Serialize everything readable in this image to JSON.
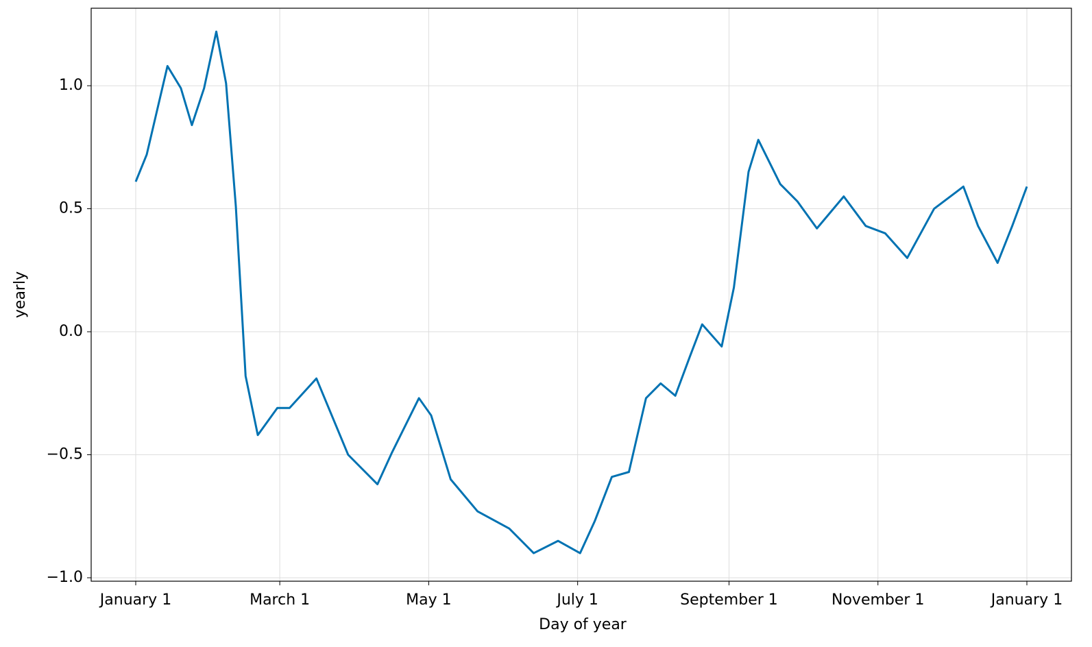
{
  "chart_data": {
    "type": "line",
    "x_label": "Day of year",
    "y_label": "yearly",
    "x": [
      0,
      4.5,
      13,
      18.5,
      23,
      28,
      33,
      37,
      41,
      45,
      50,
      58,
      63,
      74,
      87,
      99,
      105,
      116,
      121,
      129,
      140,
      153,
      163,
      173,
      182,
      188,
      195,
      202,
      209,
      215,
      221,
      227,
      232,
      240,
      245,
      251,
      255,
      264,
      271,
      279,
      290,
      299,
      307,
      316,
      327,
      339,
      345,
      353,
      359,
      365
    ],
    "series": [
      {
        "name": "yearly",
        "color": "#0072b2",
        "values": [
          0.61,
          0.72,
          1.08,
          0.99,
          0.84,
          0.99,
          1.22,
          1.01,
          0.51,
          -0.18,
          -0.42,
          -0.31,
          -0.31,
          -0.19,
          -0.5,
          -0.62,
          -0.49,
          -0.27,
          -0.34,
          -0.6,
          -0.73,
          -0.8,
          -0.9,
          -0.85,
          -0.9,
          -0.77,
          -0.59,
          -0.57,
          -0.27,
          -0.21,
          -0.26,
          -0.1,
          0.03,
          -0.06,
          0.18,
          0.65,
          0.78,
          0.6,
          0.53,
          0.42,
          0.55,
          0.43,
          0.4,
          0.3,
          0.5,
          0.59,
          0.43,
          0.28,
          0.43,
          0.59
        ]
      }
    ],
    "xlim": [
      -18.25,
      383.25
    ],
    "xticks": [
      {
        "value": 0,
        "label": "January 1"
      },
      {
        "value": 59,
        "label": "March 1"
      },
      {
        "value": 120,
        "label": "May 1"
      },
      {
        "value": 181,
        "label": "July 1"
      },
      {
        "value": 243,
        "label": "September 1"
      },
      {
        "value": 304,
        "label": "November 1"
      },
      {
        "value": 365,
        "label": "January 1"
      }
    ],
    "ylim": [
      -1.014,
      1.315
    ],
    "yticks": [
      {
        "value": -1,
        "label": "−1.0"
      },
      {
        "value": -0.5,
        "label": "−0.5"
      },
      {
        "value": 0,
        "label": "0.0"
      },
      0.5,
      {
        "value": 1,
        "label": "1.0"
      }
    ],
    "grid": true
  }
}
